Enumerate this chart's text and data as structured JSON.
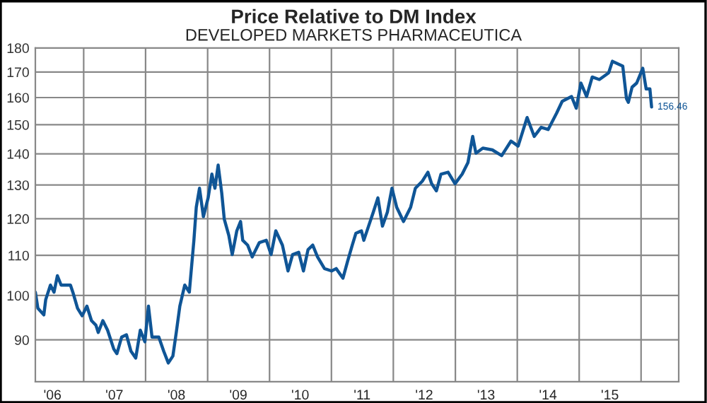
{
  "chart_data": {
    "type": "line",
    "title": "Price Relative to DM Index",
    "subtitle": "DEVELOPED MARKETS PHARMACEUTICA",
    "x": [
      "2006-03-22",
      "2006-04-06",
      "2006-05-11",
      "2006-05-22",
      "2006-06-19",
      "2006-07-10",
      "2006-07-30",
      "2006-08-21",
      "2006-10-15",
      "2006-10-29",
      "2006-11-26",
      "2006-12-23",
      "2007-01-20",
      "2007-02-16",
      "2007-03-14",
      "2007-03-28",
      "2007-04-24",
      "2007-05-22",
      "2007-06-27",
      "2007-07-16",
      "2007-08-13",
      "2007-09-10",
      "2007-10-07",
      "2007-11-04",
      "2007-12-01",
      "2007-12-28",
      "2008-01-18",
      "2008-02-08",
      "2008-03-19",
      "2008-04-17",
      "2008-05-14",
      "2008-06-10",
      "2008-06-30",
      "2008-07-21",
      "2008-08-19",
      "2008-09-15",
      "2008-10-12",
      "2008-10-26",
      "2008-11-14",
      "2008-12-07",
      "2009-01-04",
      "2009-01-26",
      "2009-02-13",
      "2009-03-04",
      "2009-03-25",
      "2009-04-09",
      "2009-05-06",
      "2009-05-26",
      "2009-06-22",
      "2009-07-14",
      "2009-07-27",
      "2009-08-25",
      "2009-09-21",
      "2009-11-02",
      "2009-12-13",
      "2010-01-10",
      "2010-02-07",
      "2010-03-18",
      "2010-04-20",
      "2010-05-17",
      "2010-06-22",
      "2010-07-20",
      "2010-08-16",
      "2010-09-13",
      "2010-10-11",
      "2010-11-21",
      "2011-01-02",
      "2011-01-29",
      "2011-03-10",
      "2011-04-06",
      "2011-05-04",
      "2011-05-25",
      "2011-06-27",
      "2011-07-11",
      "2011-08-08",
      "2011-09-05",
      "2011-10-02",
      "2011-10-29",
      "2011-11-27",
      "2011-12-24",
      "2012-01-21",
      "2012-03-01",
      "2012-04-12",
      "2012-05-10",
      "2012-06-20",
      "2012-07-23",
      "2012-08-14",
      "2012-09-11",
      "2012-10-08",
      "2012-11-19",
      "2012-12-30",
      "2013-02-10",
      "2013-03-16",
      "2013-04-13",
      "2013-05-02",
      "2013-06-12",
      "2013-08-07",
      "2013-10-01",
      "2013-11-25",
      "2014-01-06",
      "2014-02-28",
      "2014-04-11",
      "2014-05-22",
      "2014-07-02",
      "2014-08-21",
      "2014-09-23",
      "2014-11-17",
      "2014-12-15",
      "2015-01-11",
      "2015-02-14",
      "2015-03-19",
      "2015-04-30",
      "2015-06-24",
      "2015-07-16",
      "2015-09-15",
      "2015-10-07",
      "2015-10-18",
      "2015-11-09",
      "2015-12-06",
      "2016-01-11",
      "2016-01-31",
      "2016-02-22",
      "2016-03-03"
    ],
    "series": [
      {
        "color": "#0f5596",
        "values": [
          100.8,
          97,
          95.5,
          99,
          102.5,
          100.8,
          104.8,
          102.5,
          102.5,
          100.8,
          97,
          95.3,
          97.5,
          94.2,
          93.2,
          91.6,
          94.2,
          92.1,
          88.1,
          87.1,
          90.6,
          91.1,
          87.6,
          86.2,
          92.1,
          89.6,
          97.5,
          90.6,
          90.6,
          87.6,
          85.2,
          86.6,
          91.6,
          97.5,
          102.5,
          100.8,
          114,
          123.3,
          129,
          120.6,
          126.1,
          133.4,
          129,
          136.3,
          127.6,
          119.9,
          115.3,
          110.2,
          116.6,
          119.2,
          114,
          112.7,
          109.6,
          113.4,
          114,
          110.2,
          116.6,
          112.7,
          106,
          110.2,
          110.8,
          106,
          111.5,
          112.7,
          109.6,
          106.6,
          106,
          106.6,
          104.2,
          108.4,
          112.7,
          115.9,
          116.6,
          114,
          117.9,
          121.9,
          126.1,
          117.9,
          121.9,
          129,
          123.3,
          119.2,
          123.3,
          129,
          131.2,
          134,
          130.4,
          128.2,
          133.4,
          134,
          130.4,
          133.4,
          137.1,
          145.9,
          140.2,
          141.9,
          141.3,
          139.4,
          144.3,
          142.6,
          152.6,
          145.9,
          149.1,
          148.3,
          154.2,
          158.6,
          160.4,
          156,
          165.6,
          160.4,
          168,
          167,
          169.7,
          174.4,
          172.4,
          159.6,
          158.2,
          164,
          165.6,
          171.5,
          163.3,
          163.3,
          156.46
        ]
      }
    ],
    "log": true,
    "ylim": [
      81.5,
      180
    ],
    "yticks": [
      90,
      100,
      110,
      120,
      130,
      140,
      150,
      160,
      170,
      180
    ],
    "xlim": [
      "2006-03-22",
      "2016-08-10"
    ],
    "xticks": [
      {
        "value": "2006-07-01",
        "label": "'06"
      },
      {
        "value": "2007-01-01",
        "label": null
      },
      {
        "value": "2007-07-01",
        "label": "'07"
      },
      {
        "value": "2008-01-01",
        "label": null
      },
      {
        "value": "2008-07-01",
        "label": "'08"
      },
      {
        "value": "2009-01-01",
        "label": null
      },
      {
        "value": "2009-07-01",
        "label": "'09"
      },
      {
        "value": "2010-01-01",
        "label": null
      },
      {
        "value": "2010-07-01",
        "label": "'10"
      },
      {
        "value": "2011-01-01",
        "label": null
      },
      {
        "value": "2011-07-01",
        "label": "'11"
      },
      {
        "value": "2012-01-01",
        "label": null
      },
      {
        "value": "2012-07-01",
        "label": "'12"
      },
      {
        "value": "2013-01-01",
        "label": null
      },
      {
        "value": "2013-07-01",
        "label": "'13"
      },
      {
        "value": "2014-01-01",
        "label": null
      },
      {
        "value": "2014-07-01",
        "label": "'14"
      },
      {
        "value": "2015-01-01",
        "label": null
      },
      {
        "value": "2015-07-01",
        "label": "'15"
      },
      {
        "value": "2016-01-01",
        "label": null
      }
    ],
    "grid": true,
    "annotations": [
      {
        "text": "156.46",
        "x": "2016-03-03",
        "y": 156.46
      }
    ]
  }
}
